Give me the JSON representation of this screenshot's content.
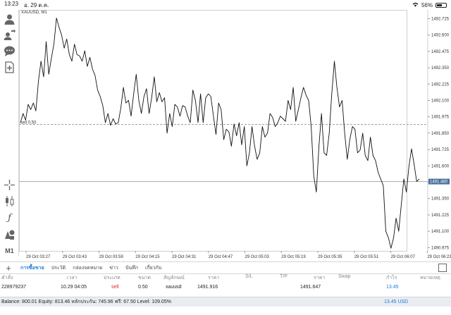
{
  "status_bar": {
    "time": "13:23",
    "date": "อ. 29 ต.ค.",
    "battery_percent": "56%",
    "battery_level": 0.56
  },
  "chart": {
    "symbol_label": "XAUUSD, M1",
    "sell_line_label": "sell 0.50",
    "current_price_label": "1491.480",
    "grid": false
  },
  "chart_data": {
    "type": "line",
    "title": "XAUUSD, M1",
    "xlabel": "",
    "ylabel": "",
    "x_ticks": [
      "29 Oct 03:27",
      "29 Oct 03:43",
      "29 Oct 03:59",
      "29 Oct 04:15",
      "29 Oct 04:31",
      "29 Oct 04:47",
      "29 Oct 05:03",
      "29 Oct 05:19",
      "29 Oct 05:35",
      "29 Oct 05:51",
      "29 Oct 06:07",
      "29 Oct 06:23"
    ],
    "y_ticks": [
      "1492.725",
      "1492.600",
      "1492.475",
      "1492.350",
      "1492.225",
      "1492.100",
      "1491.975",
      "1491.850",
      "1491.725",
      "1491.600",
      "1491.475",
      "1491.350",
      "1491.225",
      "1491.100",
      "1490.975"
    ],
    "ylim": [
      1490.95,
      1492.76
    ],
    "levels": [
      {
        "label": "sell 0.50",
        "price": 1491.916
      },
      {
        "label": "1491.480",
        "price": 1491.48
      }
    ],
    "series": [
      {
        "values": [
          1491.93,
          1492.0,
          1491.95,
          1492.07,
          1492.03,
          1492.08,
          1492.02,
          1492.25,
          1492.4,
          1492.28,
          1492.55,
          1492.3,
          1492.42,
          1492.53,
          1492.73,
          1492.66,
          1492.6,
          1492.5,
          1492.57,
          1492.45,
          1492.4,
          1492.53,
          1492.45,
          1492.44,
          1492.4,
          1492.48,
          1492.36,
          1492.43,
          1492.34,
          1492.29,
          1492.18,
          1492.13,
          1492.06,
          1491.93,
          1492.0,
          1491.91,
          1491.96,
          1491.92,
          1491.93,
          1492.04,
          1492.2,
          1492.08,
          1492.1,
          1491.98,
          1492.15,
          1492.3,
          1492.1,
          1492.0,
          1492.13,
          1492.19,
          1492.0,
          1492.12,
          1492.28,
          1492.09,
          1492.16,
          1492.09,
          1492.12,
          1491.85,
          1492.0,
          1491.9,
          1492.07,
          1492.05,
          1491.98,
          1492.06,
          1492.05,
          1491.98,
          1491.93,
          1492.18,
          1492.1,
          1491.93,
          1492.15,
          1491.93,
          1492.12,
          1492.15,
          1492.13,
          1491.98,
          1491.84,
          1492.08,
          1492.03,
          1491.8,
          1491.88,
          1491.86,
          1491.75,
          1491.92,
          1491.83,
          1491.93,
          1491.76,
          1491.9,
          1491.6,
          1491.7,
          1491.9,
          1491.75,
          1491.65,
          1491.7,
          1491.9,
          1491.82,
          1491.85,
          1492.0,
          1491.97,
          1491.9,
          1491.93,
          1491.98,
          1491.96,
          1491.94,
          1492.1,
          1492.03,
          1492.2,
          1491.94,
          1492.03,
          1492.12,
          1492.2,
          1492.14,
          1492.1,
          1491.9,
          1491.52,
          1491.4,
          1491.75,
          1492.0,
          1491.7,
          1491.68,
          1491.85,
          1492.15,
          1492.4,
          1492.2,
          1492.05,
          1492.1,
          1491.85,
          1491.65,
          1491.8,
          1491.9,
          1491.88,
          1491.7,
          1491.72,
          1491.85,
          1491.68,
          1491.64,
          1491.82,
          1491.68,
          1491.64,
          1491.55,
          1491.5,
          1491.45,
          1491.1,
          1491.05,
          1490.97,
          1491.05,
          1491.2,
          1491.1,
          1491.3,
          1491.5,
          1491.4,
          1491.6,
          1491.73,
          1491.61,
          1491.48,
          1491.5
        ]
      }
    ]
  },
  "terminal": {
    "tabs": [
      "การซื้อขาย",
      "ประวัติ",
      "กล่องจดหมาย",
      "ข่าว",
      "บันทึก",
      "เกี่ยวกับ"
    ],
    "headers": {
      "ticket": "คำสั่ง",
      "time": "เวลา",
      "type": "ประเภท",
      "volume": "ขนาด",
      "symbol": "สัญลักษณ์",
      "price": "ราคา",
      "sl": "S/L",
      "tp": "T/P",
      "current_price": "ราคา",
      "swap": "Swap",
      "profit": "กำไร",
      "comment": "หมายเหตุ"
    },
    "rows": [
      {
        "ticket": "228979237",
        "time": "10.29 04:05",
        "type": "sell",
        "volume": "0.50",
        "symbol": "xauusd",
        "price": "1491.916",
        "sl": "",
        "tp": "",
        "current_price": "1491.647",
        "swap": "",
        "profit": "13.45",
        "comment": ""
      }
    ],
    "balance_line": "Balance: 800.01  Equity: 813.46  หลักประกัน: 745.96  ฟรี: 67.50  Level: 109.05%",
    "total_profit": "13.45  USD"
  },
  "icons": [
    "person-icon",
    "person-arrows-icon",
    "chat-icon",
    "add-document-icon",
    "crosshair-icon",
    "candlestick-icon",
    "function-icon",
    "objects-icon",
    "timeframe-icon"
  ],
  "timeframe": "M1",
  "colors": {
    "accent": "#1f7bd6",
    "sell": "#d9252a",
    "price_tag": "#4a6f9c"
  }
}
